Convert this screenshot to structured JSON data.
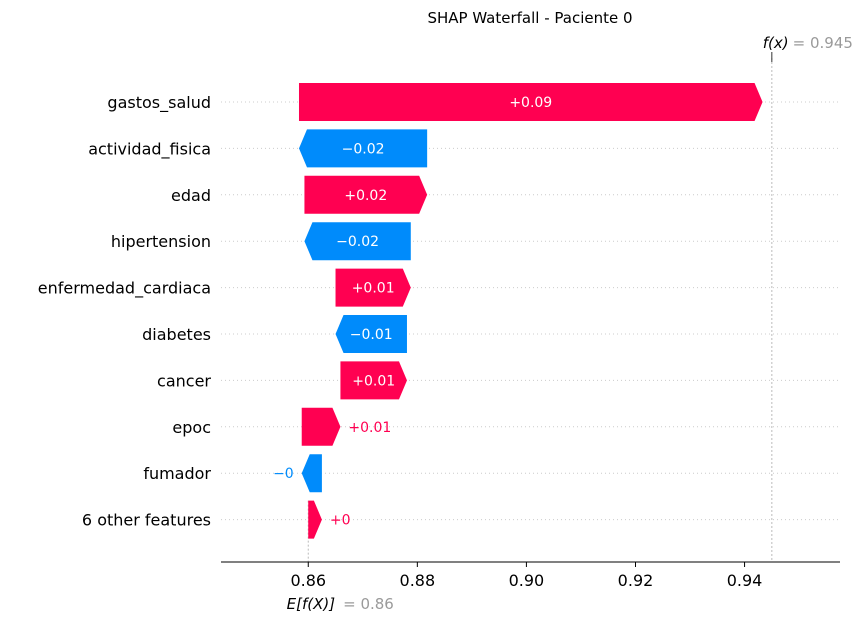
{
  "chart_data": {
    "type": "waterfall",
    "title": "SHAP Waterfall - Paciente 0",
    "base_value": 0.86,
    "base_value_label": "E[f(X)]",
    "base_value_text": "= 0.86",
    "output_value": 0.945,
    "output_value_label": "f(x)",
    "output_value_text": "= 0.945",
    "xlim": [
      0.844,
      0.9575
    ],
    "xticks": [
      "0.86",
      "0.88",
      "0.90",
      "0.92",
      "0.94"
    ],
    "xtick_values": [
      0.86,
      0.88,
      0.9,
      0.92,
      0.94
    ],
    "features": [
      {
        "name": "gastos_salud",
        "value": 0.085,
        "label": "+0.09"
      },
      {
        "name": "actividad_fisica",
        "value": -0.0235,
        "label": "−0.02"
      },
      {
        "name": "edad",
        "value": 0.0225,
        "label": "+0.02"
      },
      {
        "name": "hipertension",
        "value": -0.0195,
        "label": "−0.02"
      },
      {
        "name": "enfermedad_cardiaca",
        "value": 0.0138,
        "label": "+0.01"
      },
      {
        "name": "diabetes",
        "value": -0.0131,
        "label": "−0.01"
      },
      {
        "name": "cancer",
        "value": 0.0122,
        "label": "+0.01"
      },
      {
        "name": "epoc",
        "value": 0.0071,
        "label": "+0.01"
      },
      {
        "name": "fumador",
        "value": -0.0037,
        "label": "−0"
      },
      {
        "name": "6 other features",
        "value": 0.0025,
        "label": "+0"
      }
    ],
    "colors": {
      "positive": "#ff0051",
      "negative": "#008bfb",
      "muted": "#9a9a9a"
    }
  }
}
